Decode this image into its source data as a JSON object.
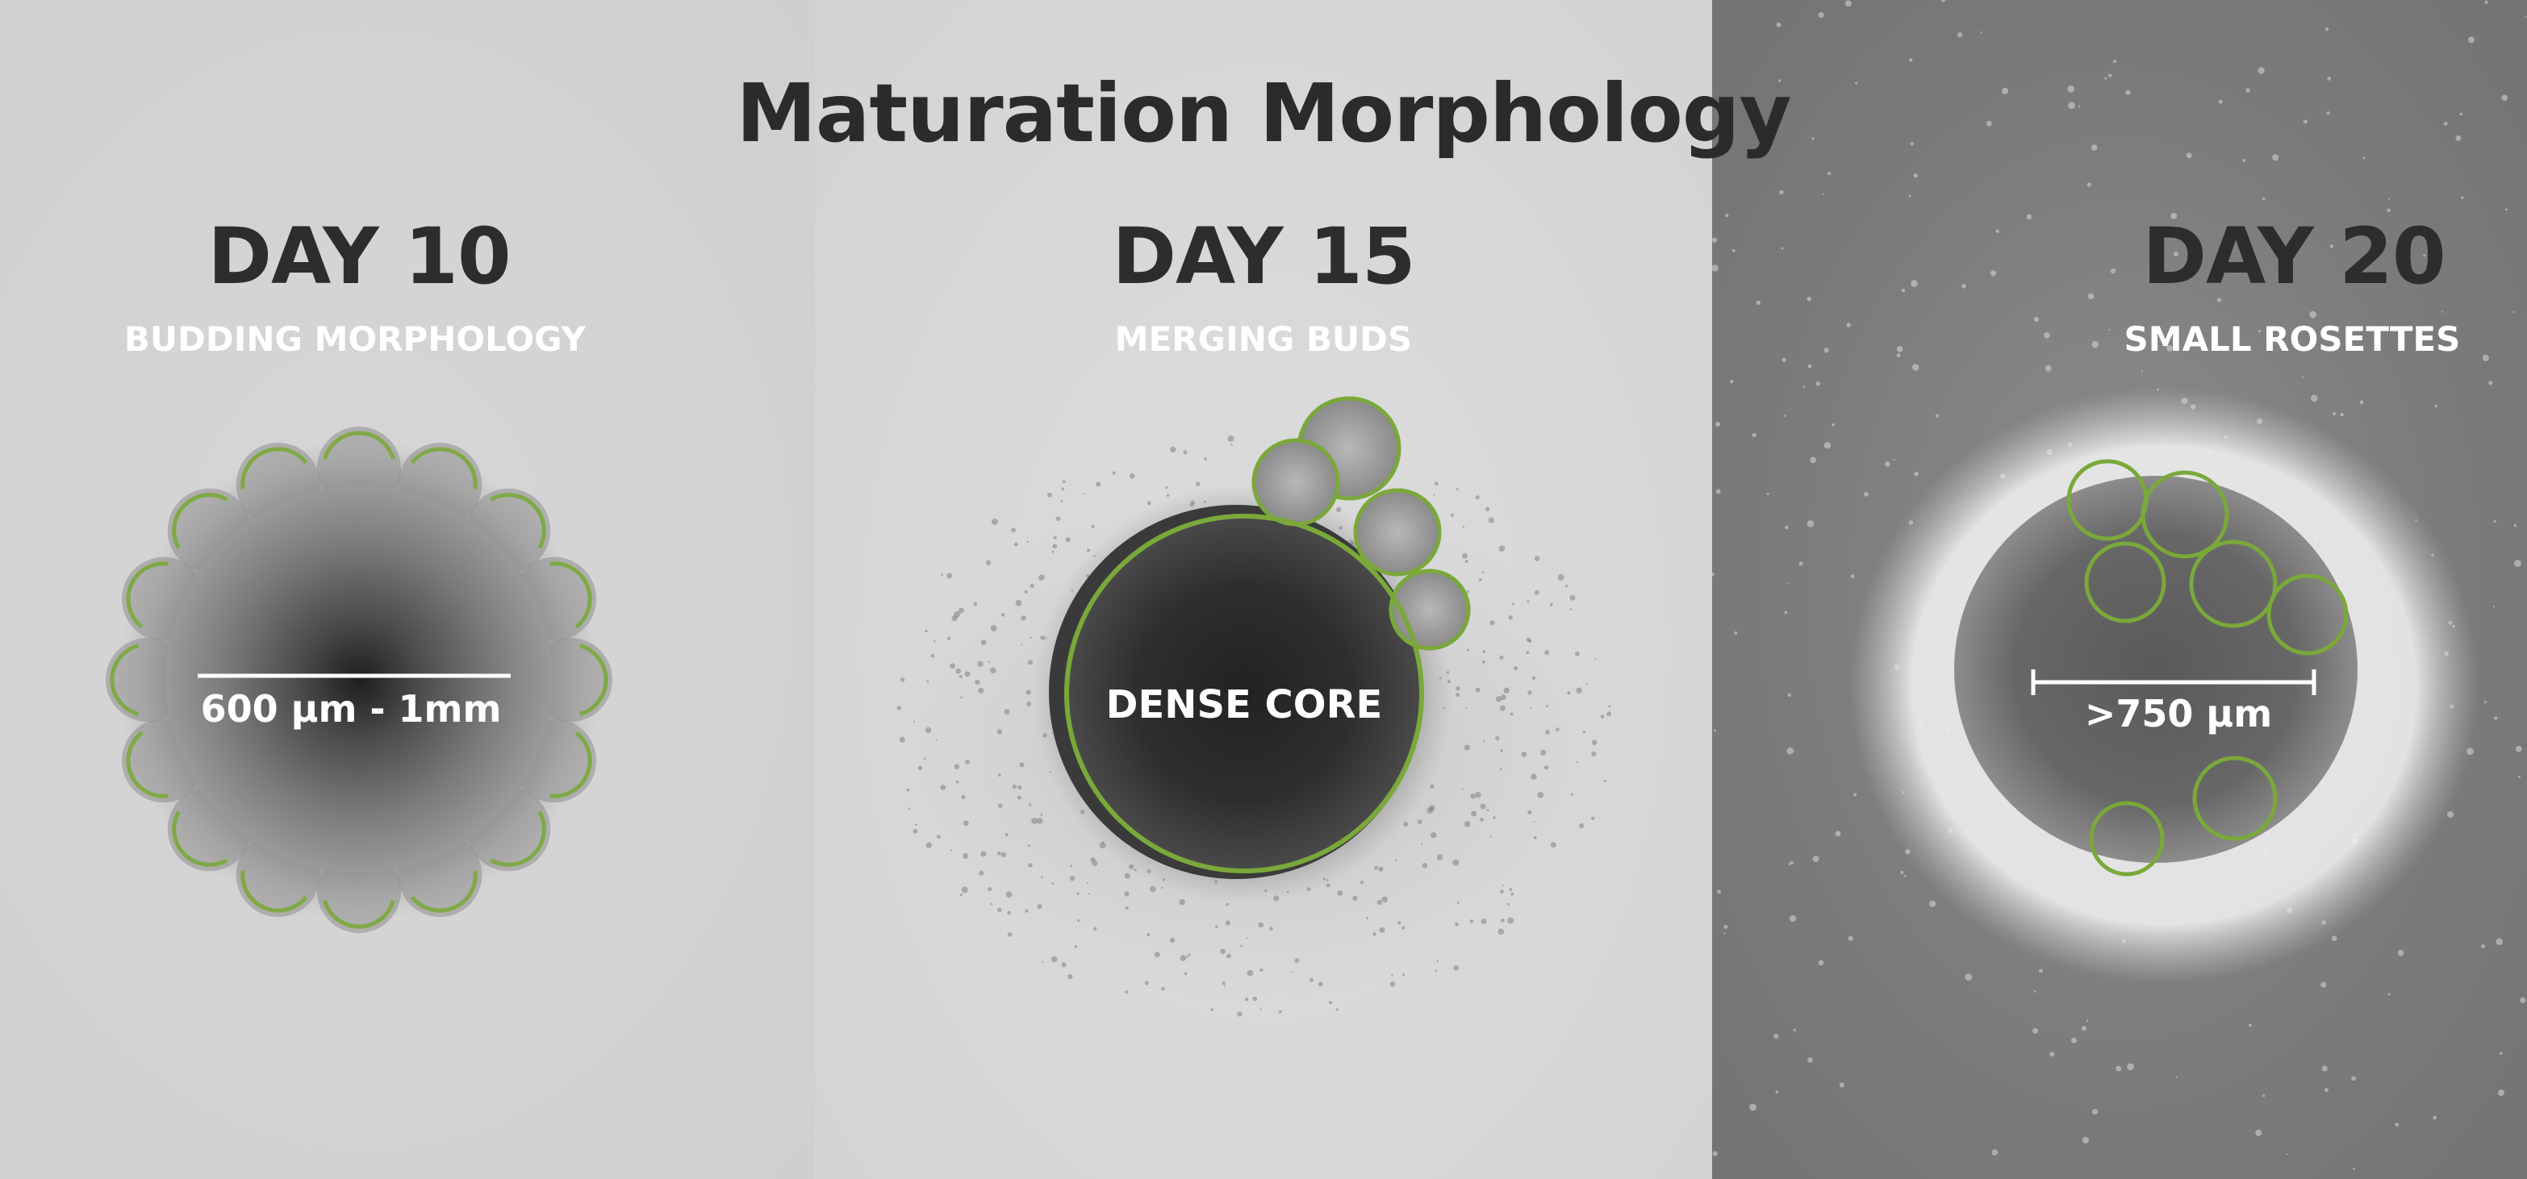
{
  "title": "Maturation Morphology",
  "panels": [
    {
      "day": "DAY 10",
      "subtitle": "BUDDING MORPHOLOGY",
      "measurement": "600 µm - 1mm"
    },
    {
      "day": "DAY 15",
      "subtitle": "MERGING BUDS",
      "label": "DENSE CORE"
    },
    {
      "day": "DAY 20",
      "subtitle": "SMALL ROSETTES",
      "measurement": ">750 µm"
    }
  ],
  "colors": {
    "outline_green": "#7aa83a",
    "title_text": "#2b2b2b",
    "subtitle_text": "#ffffff"
  }
}
